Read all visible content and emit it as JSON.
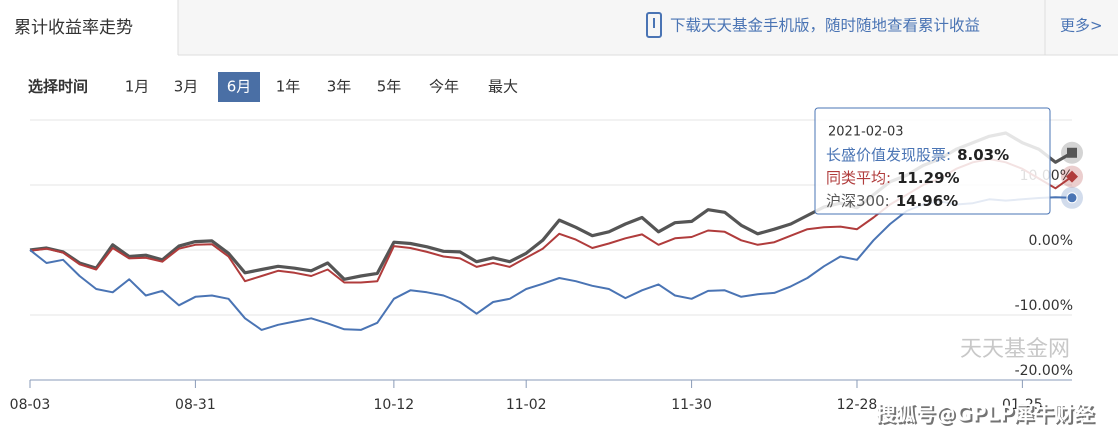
{
  "header": {
    "tab": "累计收益率走势",
    "download": "下载天天基金手机版，随时随地查看累计收益",
    "more": "更多>"
  },
  "time_filter": {
    "label": "选择时间",
    "options": [
      "1月",
      "3月",
      "6月",
      "1年",
      "3年",
      "5年",
      "今年",
      "最大"
    ],
    "selected": 2
  },
  "watermark": "天天基金网",
  "credit": "搜狐号@GPLP犀牛财经",
  "chart_data": {
    "type": "line",
    "categories": [
      "08-03",
      null,
      null,
      null,
      null,
      null,
      null,
      null,
      null,
      null,
      "08-31",
      null,
      null,
      null,
      null,
      null,
      null,
      null,
      null,
      null,
      null,
      null,
      "10-12",
      null,
      null,
      null,
      null,
      null,
      null,
      null,
      "11-02",
      null,
      null,
      null,
      null,
      null,
      null,
      null,
      null,
      null,
      "11-30",
      null,
      null,
      null,
      null,
      null,
      null,
      null,
      null,
      null,
      "12-28",
      null,
      null,
      null,
      null,
      null,
      null,
      null,
      null,
      null,
      "01-25",
      null,
      null,
      null
    ],
    "series": [
      {
        "name": "长盛价值发现股票",
        "color": "#4a74b4",
        "values": [
          0,
          -2,
          -1.5,
          -4,
          -6,
          -6.5,
          -4.5,
          -7,
          -6.3,
          -8.5,
          -7.2,
          -7,
          -7.5,
          -10.5,
          -12.3,
          -11.5,
          -11,
          -10.5,
          -11.3,
          -12.2,
          -12.3,
          -11.2,
          -7.5,
          -6.2,
          -6.5,
          -7,
          -8,
          -9.8,
          -8,
          -7.5,
          -6,
          -5.2,
          -4.3,
          -4.8,
          -5.5,
          -6,
          -7.4,
          -6.2,
          -5.3,
          -7,
          -7.5,
          -6.3,
          -6.2,
          -7.2,
          -6.8,
          -6.6,
          -5.6,
          -4.3,
          -2.5,
          -1,
          -1.5,
          1.5,
          4,
          6,
          7,
          7.5,
          7,
          7.2,
          7.8,
          7.6,
          7.8,
          8,
          8.1,
          8.03
        ]
      },
      {
        "name": "同类平均",
        "color": "#b03c3c",
        "values": [
          -0.1,
          0.2,
          -0.4,
          -2.2,
          -3,
          0.3,
          -1.3,
          -1.2,
          -1.8,
          0.2,
          0.8,
          0.9,
          -1,
          -4.8,
          -4,
          -3.2,
          -3.5,
          -4,
          -3,
          -5,
          -5,
          -4.8,
          0.6,
          0.3,
          -0.3,
          -1,
          -1.3,
          -2.6,
          -2,
          -2.6,
          -1.2,
          0.2,
          2.5,
          1.6,
          0.3,
          1,
          1.8,
          2.4,
          0.8,
          1.8,
          2,
          3,
          2.8,
          1.5,
          0.8,
          1.2,
          2.2,
          3.2,
          3.5,
          3.6,
          3.2,
          5,
          7,
          8.5,
          10,
          11,
          12.5,
          13.5,
          14,
          13.5,
          12.5,
          11,
          9.5,
          11.29
        ]
      },
      {
        "name": "沪深300",
        "color": "#555555",
        "values": [
          0,
          0.3,
          -0.3,
          -2,
          -2.8,
          0.8,
          -1,
          -0.8,
          -1.5,
          0.6,
          1.3,
          1.4,
          -0.5,
          -3.5,
          -3,
          -2.5,
          -2.8,
          -3.2,
          -2,
          -4.5,
          -4,
          -3.6,
          1.2,
          1,
          0.5,
          -0.2,
          -0.3,
          -1.8,
          -1.2,
          -1.8,
          -0.5,
          1.5,
          4.6,
          3.5,
          2.2,
          2.8,
          4,
          5,
          2.8,
          4.2,
          4.4,
          6.2,
          5.8,
          3.8,
          2.5,
          3.2,
          4,
          5.3,
          6.6,
          7.2,
          6.5,
          8.5,
          10.5,
          11.5,
          13,
          14,
          15.5,
          16.5,
          17.5,
          18,
          16.5,
          15.5,
          13.5,
          14.96
        ]
      }
    ],
    "ylim": [
      -20,
      20
    ],
    "yticks": [
      {
        "value": -20,
        "label": "-20.00%"
      },
      {
        "value": -10,
        "label": "-10.00%"
      },
      {
        "value": 0,
        "label": "0.00%"
      },
      {
        "value": 10,
        "label": "10.00%"
      }
    ],
    "grid": true,
    "tooltip": {
      "date": "2021-02-03",
      "rows": [
        {
          "label": "长盛价值发现股票:",
          "value": "8.03%"
        },
        {
          "label": "同类平均:",
          "value": "11.29%"
        },
        {
          "label": "沪深300:",
          "value": "14.96%"
        }
      ]
    }
  }
}
